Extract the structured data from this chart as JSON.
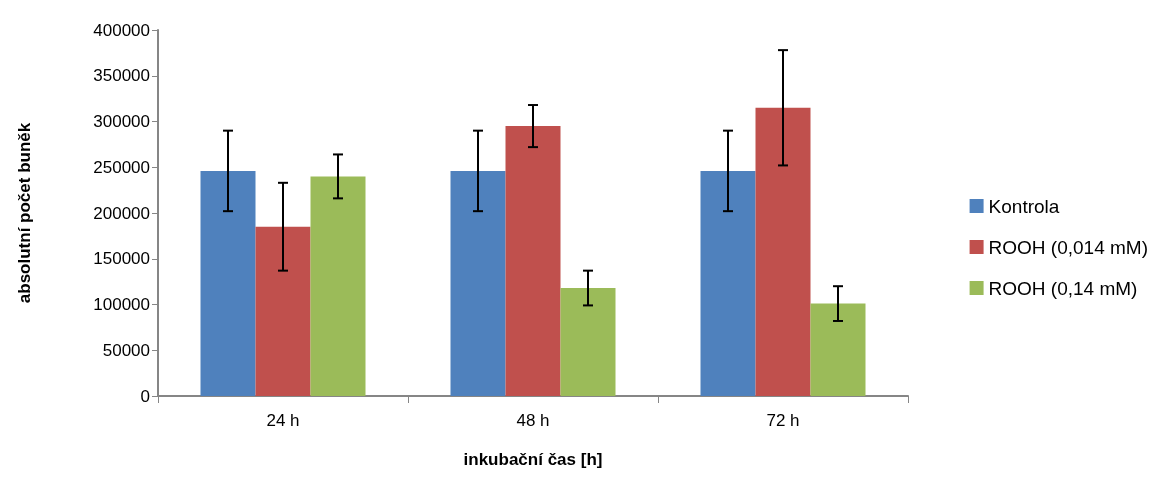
{
  "chart_data": {
    "type": "bar",
    "xlabel": "inkubační čas [h]",
    "ylabel": "absolutní počet buněk",
    "categories": [
      "24 h",
      "48 h",
      "72 h"
    ],
    "series": [
      {
        "name": "Kontrola",
        "color": "#4f81bd",
        "values": [
          246000,
          246000,
          246000
        ],
        "errors": [
          44000,
          44000,
          44000
        ]
      },
      {
        "name": "ROOH (0,014 mM)",
        "color": "#c0504d",
        "values": [
          185000,
          295000,
          315000
        ],
        "errors": [
          48000,
          23000,
          63000
        ]
      },
      {
        "name": "ROOH (0,14 mM)",
        "color": "#9bbb59",
        "values": [
          240000,
          118000,
          101000
        ],
        "errors": [
          24000,
          19000,
          19000
        ]
      }
    ],
    "ylim": [
      0,
      400000
    ],
    "yticks": [
      0,
      50000,
      100000,
      150000,
      200000,
      250000,
      300000,
      350000,
      400000
    ],
    "grid": false,
    "legend": "right"
  }
}
